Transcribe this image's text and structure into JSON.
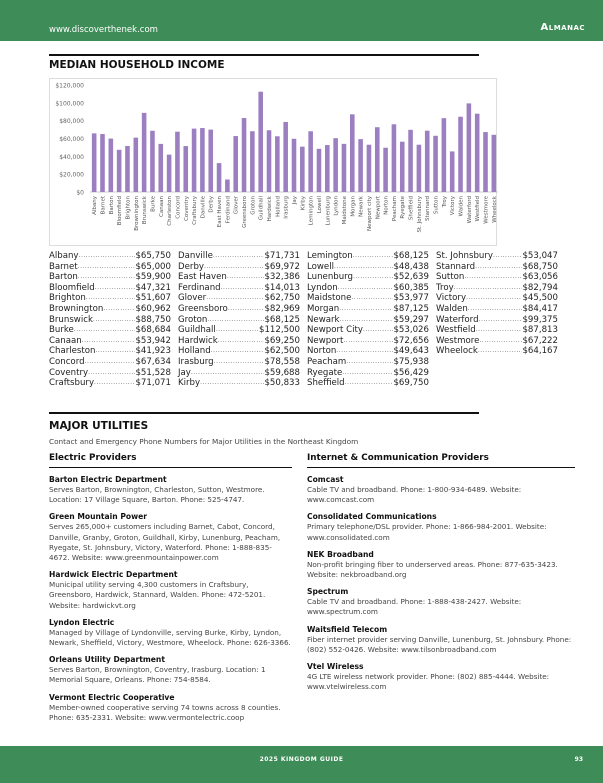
{
  "header": {
    "url": "www.discoverthenek.com",
    "section": "Almanac"
  },
  "income": {
    "title": "MEDIAN HOUSEHOLD INCOME",
    "columns": [
      [
        [
          "Albany",
          "$65,750"
        ],
        [
          "Barnet",
          "$65,000"
        ],
        [
          "Barton",
          "$59,900"
        ],
        [
          "Bloomfield",
          "$47,321"
        ],
        [
          "Brighton",
          "$51,607"
        ],
        [
          "Brownington",
          "$60,962"
        ],
        [
          "Brunswick",
          "$88,750"
        ],
        [
          "Burke",
          "$68,684"
        ],
        [
          "Canaan",
          "$53,942"
        ],
        [
          "Charleston",
          "$41,923"
        ],
        [
          "Concord",
          "$67,634"
        ],
        [
          "Coventry",
          "$51,528"
        ],
        [
          "Craftsbury",
          "$71,071"
        ]
      ],
      [
        [
          "Danville",
          "$71,731"
        ],
        [
          "Derby",
          "$69,972"
        ],
        [
          "East Haven",
          "$32,386"
        ],
        [
          "Ferdinand",
          "$14,013"
        ],
        [
          "Glover",
          "$62,750"
        ],
        [
          "Greensboro",
          "$82,969"
        ],
        [
          "Groton",
          "$68,125"
        ],
        [
          "Guildhall",
          "$112,500"
        ],
        [
          "Hardwick",
          "$69,250"
        ],
        [
          "Holland",
          "$62,500"
        ],
        [
          "Irasburg",
          "$78,558"
        ],
        [
          "Jay",
          "$59,688"
        ],
        [
          "Kirby",
          "$50,833"
        ]
      ],
      [
        [
          "Lemington",
          "$68,125"
        ],
        [
          "Lowell",
          "$48,438"
        ],
        [
          "Lunenburg",
          "$52,639"
        ],
        [
          "Lyndon",
          "$60,385"
        ],
        [
          "Maidstone",
          "$53,977"
        ],
        [
          "Morgan",
          "$87,125"
        ],
        [
          "Newark",
          "$59,297"
        ],
        [
          "Newport City",
          "$53,026"
        ],
        [
          "Newport",
          "$72,656"
        ],
        [
          "Norton",
          "$49,643"
        ],
        [
          "Peacham",
          "$75,938"
        ],
        [
          "Ryegate",
          "$56,429"
        ],
        [
          "Sheffield",
          "$69,750"
        ]
      ],
      [
        [
          "St. Johnsbury",
          "$53,047"
        ],
        [
          "Stannard",
          "$68,750"
        ],
        [
          "Sutton",
          "$63,056"
        ],
        [
          "Troy",
          "$82,794"
        ],
        [
          "Victory",
          "$45,500"
        ],
        [
          "Walden",
          "$84,417"
        ],
        [
          "Waterford",
          "$99,375"
        ],
        [
          "Westfield",
          "$87,813"
        ],
        [
          "Westmore",
          "$67,222"
        ],
        [
          "Wheelock",
          "$64,167"
        ]
      ]
    ]
  },
  "chart_data": {
    "type": "bar",
    "title": "",
    "xlabel": "",
    "ylabel": "",
    "ylim": [
      0,
      120000
    ],
    "grid": false,
    "color": "#9b7fc0",
    "yticks": [
      "$0",
      "$20,000",
      "$40,000",
      "$60,000",
      "$80,000",
      "$100,000",
      "$120,000"
    ],
    "categories": [
      "Albany",
      "Barnet",
      "Barton",
      "Bloomfield",
      "Brighton",
      "Brownington",
      "Brunswick",
      "Burke",
      "Canaan",
      "Charleston",
      "Concord",
      "Coventry",
      "Craftsbury",
      "Danville",
      "Derby",
      "East Haven",
      "Ferdinand",
      "Glover",
      "Greensboro",
      "Groton",
      "Guildhall",
      "Hardwick",
      "Holland",
      "Irasburg",
      "Jay",
      "Kirby",
      "Lemington",
      "Lowell",
      "Lunenburg",
      "Lyndon",
      "Maidstone",
      "Morgan",
      "Newark",
      "Newport city",
      "Newport",
      "Norton",
      "Peacham",
      "Ryegate",
      "Sheffield",
      "St. Johnsbury",
      "Stannard",
      "Sutton",
      "Troy",
      "Victory",
      "Walden",
      "Waterford",
      "Westfield",
      "Westmore",
      "Wheelock"
    ],
    "values": [
      65750,
      65000,
      59900,
      47321,
      51607,
      60962,
      88750,
      68684,
      53942,
      41923,
      67634,
      51528,
      71071,
      71731,
      69972,
      32386,
      14013,
      62750,
      82969,
      68125,
      112500,
      69250,
      62500,
      78558,
      59688,
      50833,
      68125,
      48438,
      52639,
      60385,
      53977,
      87125,
      59297,
      53026,
      72656,
      49643,
      75938,
      56429,
      69750,
      53047,
      68750,
      63056,
      82794,
      45500,
      84417,
      99375,
      87813,
      67222,
      64167
    ]
  },
  "utilities": {
    "title": "MAJOR UTILITIES",
    "subtitle": "Contact and Emergency Phone Numbers for Major Utilities in the Northeast Kingdom",
    "electric": {
      "heading": "Electric Providers",
      "items": [
        {
          "name": "Barton Electric Department",
          "desc": "Serves Barton, Brownington, Charleston, Sutton, Westmore. Location: 17 Village Square, Barton. Phone: 525-4747."
        },
        {
          "name": "Green Mountain Power",
          "desc": "Serves 265,000+ customers including Barnet, Cabot, Concord, Danville, Granby, Groton, Guildhall, Kirby, Lunenburg, Peacham, Ryegate, St. Johnsbury, Victory, Waterford. Phone: 1-888-835-4672. Website: www.greenmountainpower.com"
        },
        {
          "name": "Hardwick Electric Department",
          "desc": "Municipal utility serving 4,300 customers in Craftsbury, Greensboro, Hardwick, Stannard, Walden. Phone: 472-5201. Website: hardwickvt.org"
        },
        {
          "name": "Lyndon Electric",
          "desc": "Managed by Village of Lyndonville, serving Burke, Kirby, Lyndon, Newark, Sheffield, Victory, Westmore, Wheelock. Phone: 626-3366."
        },
        {
          "name": "Orleans Utility Department",
          "desc": "Serves Barton, Brownington, Coventry, Irasburg. Location: 1 Memorial Square, Orleans. Phone: 754-8584."
        },
        {
          "name": "Vermont Electric Cooperative",
          "desc": "Member-owned cooperative serving 74 towns across 8 counties. Phone: 635-2331. Website: www.vermontelectric.coop"
        }
      ]
    },
    "internet": {
      "heading": "Internet & Communication Providers",
      "items": [
        {
          "name": "Comcast",
          "desc": "Cable TV and broadband. Phone: 1-800-934-6489. Website: www.comcast.com"
        },
        {
          "name": "Consolidated Communications",
          "desc": "Primary telephone/DSL provider. Phone: 1-866-984-2001. Website: www.consolidated.com"
        },
        {
          "name": "NEK Broadband",
          "desc": "Non-profit bringing fiber to underserved areas. Phone: 877-635-3423. Website: nekbroadband.org"
        },
        {
          "name": "Spectrum",
          "desc": "Cable TV and broadband. Phone: 1-888-438-2427. Website: www.spectrum.com"
        },
        {
          "name": "Waitsfield Telecom",
          "desc": "Fiber internet provider serving Danville, Lunenburg, St. Johnsbury. Phone: (802) 552-0426. Website: www.tilsonbroadband.com"
        },
        {
          "name": "Vtel Wireless",
          "desc": "4G LTE wireless network provider. Phone: (802) 885-4444. Website: www.vtelwireless.com"
        }
      ]
    }
  },
  "footer": {
    "guide": "2025 KINGDOM GUIDE",
    "page": "93"
  }
}
